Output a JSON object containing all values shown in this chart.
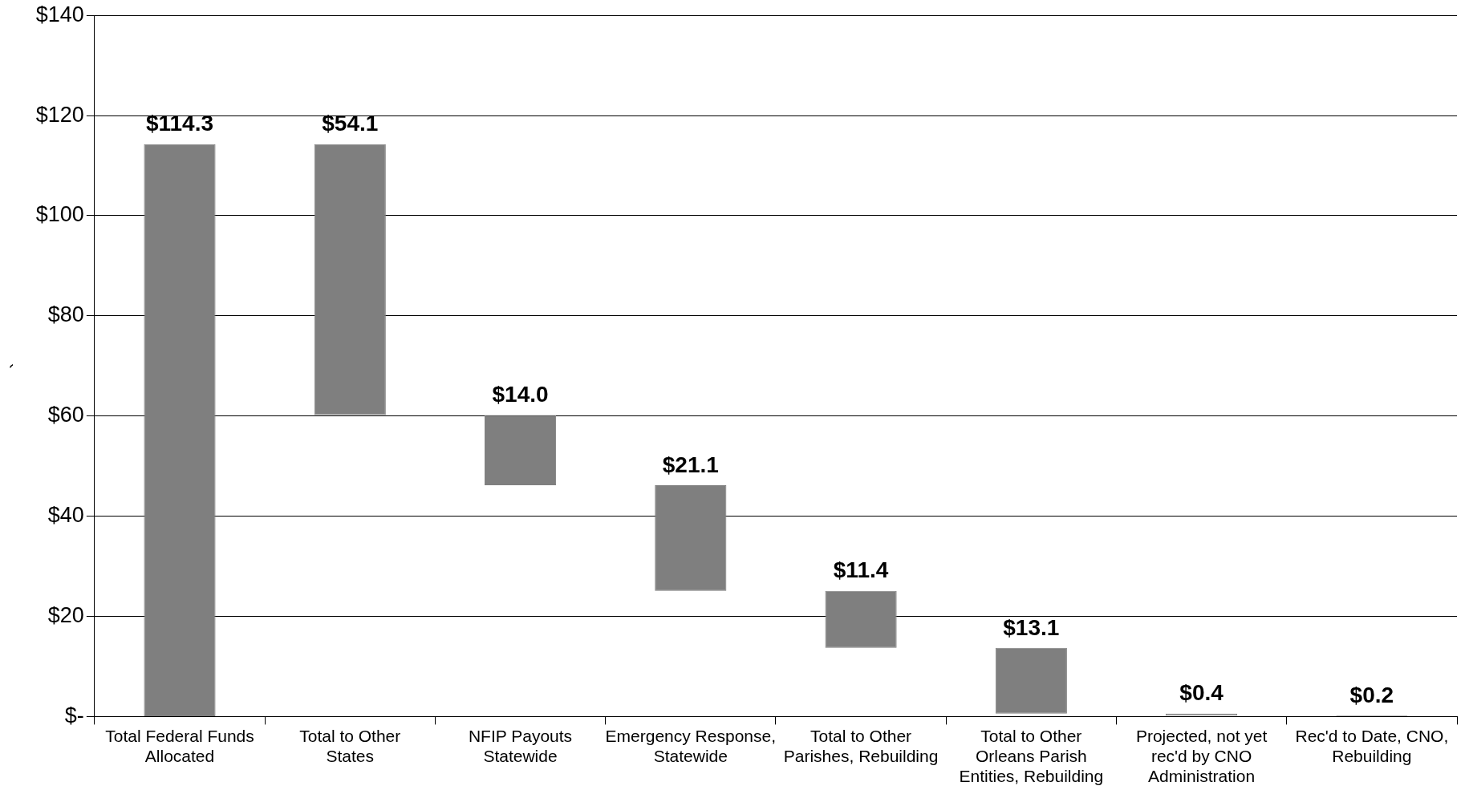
{
  "chart_data": {
    "type": "bar",
    "ylabel": "`",
    "categories": [
      "Total Federal Funds Allocated",
      "Total to Other States",
      "NFIP Payouts Statewide",
      "Emergency Response, Statewide",
      "Total to Other Parishes, Rebuilding",
      "Total to Other Orleans Parish Entities, Rebuilding",
      "Projected, not yet rec'd by CNO Administration",
      "Rec'd to Date, CNO, Rebuilding"
    ],
    "values": [
      114.3,
      54.1,
      14.0,
      21.1,
      11.4,
      13.1,
      0.4,
      0.2
    ],
    "base": [
      0,
      60.2,
      46.2,
      25.1,
      13.7,
      0.6,
      0.2,
      0
    ],
    "value_labels": [
      "$114.3",
      "$54.1",
      "$14.0",
      "$21.1",
      "$11.4",
      "$13.1",
      "$0.4",
      "$0.2"
    ],
    "color": "#7f7f7f",
    "ylim": [
      0,
      140
    ],
    "yticks": [
      {
        "value": 0,
        "label": "$-"
      },
      {
        "value": 20,
        "label": "$20"
      },
      {
        "value": 40,
        "label": "$40"
      },
      {
        "value": 60,
        "label": "$60"
      },
      {
        "value": 80,
        "label": "$80"
      },
      {
        "value": 100,
        "label": "$100"
      },
      {
        "value": 120,
        "label": "$120"
      },
      {
        "value": 140,
        "label": "$140"
      }
    ],
    "grid": "y",
    "legend": false
  }
}
